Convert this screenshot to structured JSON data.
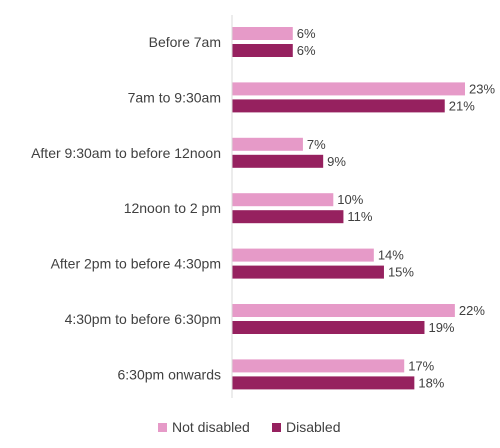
{
  "chart_data": {
    "type": "bar",
    "orientation": "horizontal",
    "categories": [
      "Before 7am",
      "7am to 9:30am",
      "After 9:30am to before 12noon",
      "12noon to 2 pm",
      "After 2pm to before 4:30pm",
      "4:30pm to before 6:30pm",
      "6:30pm onwards"
    ],
    "series": [
      {
        "name": "Not disabled",
        "color": "#e69ac8",
        "values": [
          6,
          23,
          7,
          10,
          14,
          22,
          17
        ],
        "labels": [
          "6%",
          "23%",
          "7%",
          "10%",
          "14%",
          "22%",
          "17%"
        ]
      },
      {
        "name": "Disabled",
        "color": "#96215f",
        "values": [
          6,
          21,
          9,
          11,
          15,
          19,
          18
        ],
        "labels": [
          "6%",
          "21%",
          "9%",
          "11%",
          "15%",
          "19%",
          "18%"
        ]
      }
    ],
    "xlim": [
      0,
      23
    ],
    "grid": false,
    "legend": "bottom"
  }
}
